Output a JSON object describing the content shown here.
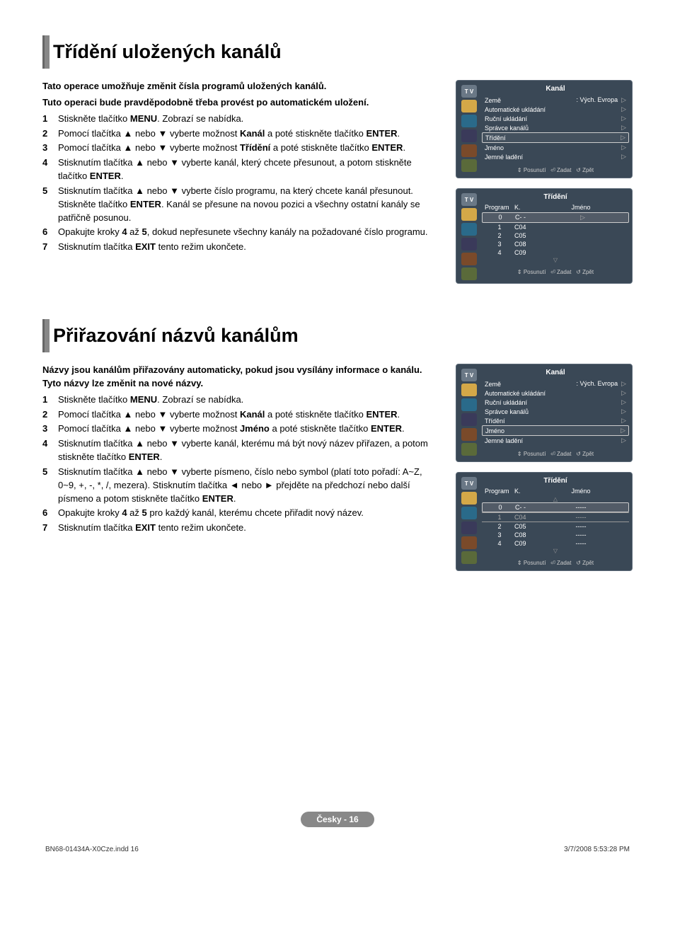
{
  "section1": {
    "heading": "Třídění uložených kanálů",
    "intro1": "Tato operace umožňuje změnit čísla programů uložených kanálů.",
    "intro2": "Tuto operaci bude pravděpodobně třeba provést po automatickém uložení.",
    "steps": [
      "Stiskněte tlačítko <b>MENU</b>. Zobrazí se nabídka.",
      "Pomocí tlačítka ▲ nebo ▼ vyberte možnost <b>Kanál</b> a poté stiskněte tlačítko <b>ENTER</b>.",
      "Pomocí tlačítka ▲ nebo ▼ vyberte možnost <b>Třídění</b> a poté stiskněte tlačítko <b>ENTER</b>.",
      "Stisknutím tlačítka ▲ nebo ▼ vyberte kanál, který chcete přesunout, a potom stiskněte tlačítko <b>ENTER</b>.",
      "Stisknutím tlačítka ▲ nebo ▼ vyberte číslo programu, na který chcete kanál přesunout. Stiskněte tlačítko <b>ENTER</b>. Kanál se přesune na novou pozici a všechny ostatní kanály se patřičně posunou.",
      "Opakujte kroky <b>4</b> až <b>5</b>, dokud nepřesunete všechny kanály na požadované číslo programu.",
      "Stisknutím tlačítka <b>EXIT</b> tento režim ukončete."
    ]
  },
  "section2": {
    "heading": "Přiřazování názvů kanálům",
    "intro": "Názvy jsou kanálům přiřazovány automaticky, pokud jsou vysílány informace o kanálu. Tyto názvy lze změnit na nové názvy.",
    "steps": [
      "Stiskněte tlačítko <b>MENU</b>. Zobrazí se nabídka.",
      "Pomocí tlačítka ▲ nebo ▼ vyberte možnost <b>Kanál</b> a poté stiskněte tlačítko <b>ENTER</b>.",
      "Pomocí tlačítka ▲ nebo ▼ vyberte možnost <b>Jméno</b> a poté stiskněte tlačítko <b>ENTER</b>.",
      "Stisknutím tlačítka ▲ nebo ▼ vyberte kanál, kterému má být nový název přiřazen, a potom stiskněte tlačítko <b>ENTER</b>.",
      "Stisknutím tlačítka ▲ nebo ▼ vyberte písmeno, číslo nebo symbol (platí toto pořadí: A~Z, 0~9, +, -, *, /, mezera). Stisknutím tlačítka ◄ nebo ► přejděte na předchozí nebo další písmeno a potom stiskněte tlačítko <b>ENTER</b>.",
      "Opakujte kroky <b>4</b> až <b>5</b> pro každý kanál, kterému chcete přiřadit nový název.",
      "Stisknutím tlačítka <b>EXIT</b> tento režim ukončete."
    ]
  },
  "osd": {
    "tv_label": "T V",
    "kanal_title": "Kanál",
    "trideni_title": "Třídění",
    "menu_kanal": {
      "items": [
        {
          "l": "Země",
          "r": ": Vých. Evropa"
        },
        {
          "l": "Automatické ukládání",
          "r": ""
        },
        {
          "l": "Ruční ukládání",
          "r": ""
        },
        {
          "l": "Správce kanálů",
          "r": ""
        },
        {
          "l": "Třídění",
          "r": ""
        },
        {
          "l": "Jméno",
          "r": ""
        },
        {
          "l": "Jemné ladění",
          "r": ""
        }
      ],
      "selected_a": 4,
      "selected_b": 5
    },
    "table": {
      "head_program": "Program",
      "head_k": "K.",
      "head_jmeno": "Jméno",
      "rows": [
        {
          "p": "0",
          "k": "C- -",
          "j": ""
        },
        {
          "p": "1",
          "k": "C04",
          "j": ""
        },
        {
          "p": "2",
          "k": "C05",
          "j": ""
        },
        {
          "p": "3",
          "k": "C08",
          "j": ""
        },
        {
          "p": "4",
          "k": "C09",
          "j": ""
        }
      ],
      "rows_named": [
        {
          "p": "0",
          "k": "C- -",
          "j": "-----"
        },
        {
          "p": "1",
          "k": "C04",
          "j": "-----"
        },
        {
          "p": "2",
          "k": "C05",
          "j": "-----"
        },
        {
          "p": "3",
          "k": "C08",
          "j": "-----"
        },
        {
          "p": "4",
          "k": "C09",
          "j": "-----"
        }
      ]
    },
    "foot_posunuti": "Posunutí",
    "foot_zadat": "Zadat",
    "foot_zpet": "Zpět"
  },
  "footer": {
    "page": "Česky - 16",
    "left": "BN68-01434A-X0Cze.indd   16",
    "right": "3/7/2008   5:53:28 PM"
  },
  "colors": {
    "osd_bg": "#3a4856",
    "heading_bar": "#666666"
  }
}
